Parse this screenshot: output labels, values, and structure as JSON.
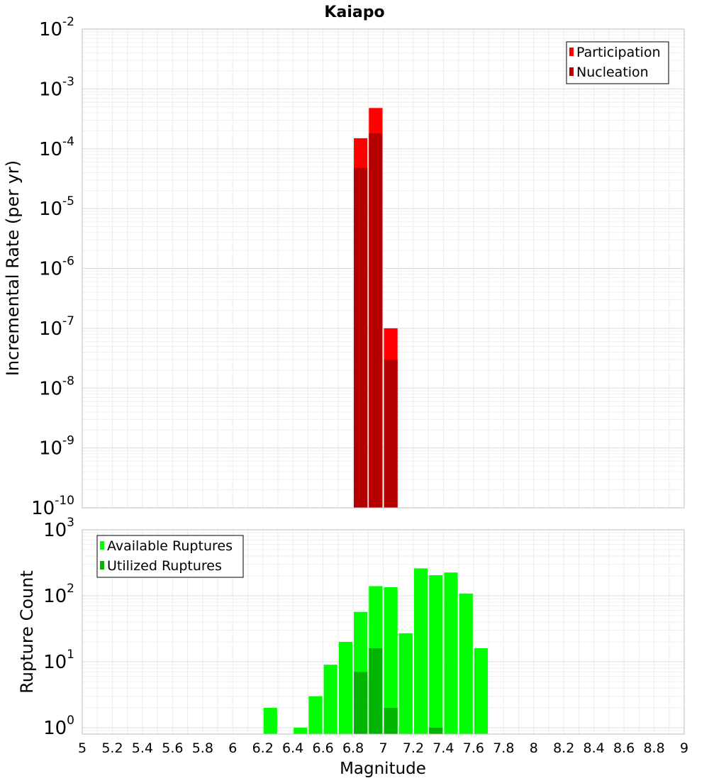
{
  "figure": {
    "title": "Kaiapo",
    "x_axis_label": "Magnitude"
  },
  "chart_data": [
    {
      "type": "bar",
      "panel": "top",
      "title": "Kaiapo",
      "xlabel": "",
      "ylabel": "Incremental Rate (per yr)",
      "ylog": true,
      "xlim": [
        5,
        9
      ],
      "ylim": [
        1e-10,
        0.01
      ],
      "bin_width": 0.1,
      "grid": true,
      "legend_position": "top-right",
      "y_ticks": [
        {
          "base": "10",
          "exp": "-10"
        },
        {
          "base": "10",
          "exp": "-9"
        },
        {
          "base": "10",
          "exp": "-8"
        },
        {
          "base": "10",
          "exp": "-7"
        },
        {
          "base": "10",
          "exp": "-6"
        },
        {
          "base": "10",
          "exp": "-5"
        },
        {
          "base": "10",
          "exp": "-4"
        },
        {
          "base": "10",
          "exp": "-3"
        },
        {
          "base": "10",
          "exp": "-2"
        }
      ],
      "series": [
        {
          "name": "Participation",
          "color": "#ff0000",
          "x": [
            6.85,
            6.95,
            7.05
          ],
          "values": [
            0.00015,
            0.00048,
            1e-07
          ]
        },
        {
          "name": "Nucleation",
          "color": "#b40000",
          "x": [
            6.85,
            6.95,
            7.05
          ],
          "values": [
            4.8e-05,
            0.00018,
            3e-08
          ]
        }
      ]
    },
    {
      "type": "bar",
      "panel": "bottom",
      "xlabel": "Magnitude",
      "ylabel": "Rupture Count",
      "ylog": true,
      "xlim": [
        5,
        9
      ],
      "ylim": [
        0.8,
        1000
      ],
      "bin_width": 0.1,
      "grid": true,
      "legend_position": "top-left",
      "y_ticks": [
        {
          "base": "10",
          "exp": "0"
        },
        {
          "base": "10",
          "exp": "1"
        },
        {
          "base": "10",
          "exp": "2"
        },
        {
          "base": "10",
          "exp": "3"
        }
      ],
      "x_ticks": [
        "5",
        "5.2",
        "5.4",
        "5.6",
        "5.8",
        "6",
        "6.2",
        "6.4",
        "6.6",
        "6.8",
        "7",
        "7.2",
        "7.4",
        "7.6",
        "7.8",
        "8",
        "8.2",
        "8.4",
        "8.6",
        "8.8",
        "9"
      ],
      "series": [
        {
          "name": "Available Ruptures",
          "color": "#00ff00",
          "x": [
            6.25,
            6.45,
            6.55,
            6.65,
            6.75,
            6.85,
            6.95,
            7.05,
            7.15,
            7.25,
            7.35,
            7.45,
            7.55,
            7.65
          ],
          "values": [
            2,
            1,
            3,
            9,
            20,
            57,
            140,
            135,
            27,
            260,
            205,
            225,
            108,
            16
          ]
        },
        {
          "name": "Utilized Ruptures",
          "color": "#00b400",
          "x": [
            6.85,
            6.95,
            7.05,
            7.35
          ],
          "values": [
            7,
            16,
            2,
            1
          ]
        }
      ]
    }
  ]
}
